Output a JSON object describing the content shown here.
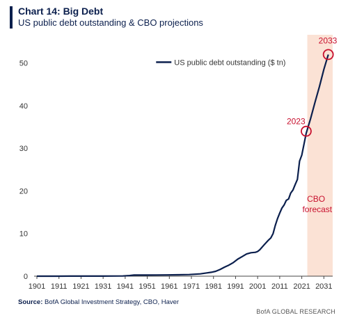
{
  "header": {
    "title": "Chart 14: Big Debt",
    "subtitle": "US public debt outstanding & CBO projections"
  },
  "footer": {
    "source_label": "Source:",
    "source_text": "BofA Global Investment Strategy, CBO, Haver",
    "brand": "BofA GLOBAL RESEARCH"
  },
  "colors": {
    "line": "#0b1f4d",
    "forecast_band": "#fbe2d5",
    "annotation": "#c8102e"
  },
  "chart_data": {
    "type": "line",
    "series": [
      {
        "name": "US public debt outstanding ($ tn)",
        "x": [
          1901,
          1911,
          1916,
          1918,
          1919,
          1921,
          1926,
          1931,
          1935,
          1940,
          1943,
          1945,
          1946,
          1950,
          1955,
          1960,
          1965,
          1970,
          1975,
          1978,
          1980,
          1982,
          1984,
          1986,
          1988,
          1990,
          1992,
          1994,
          1996,
          1998,
          2000,
          2001,
          2002,
          2004,
          2006,
          2007,
          2008,
          2009,
          2010,
          2011,
          2012,
          2013,
          2014,
          2015,
          2016,
          2017,
          2018,
          2019,
          2020,
          2021,
          2022,
          2023,
          2025,
          2027,
          2029,
          2031,
          2033
        ],
        "values": [
          0.0,
          0.0,
          0.01,
          0.01,
          0.03,
          0.02,
          0.02,
          0.02,
          0.03,
          0.05,
          0.14,
          0.26,
          0.27,
          0.26,
          0.27,
          0.29,
          0.32,
          0.38,
          0.54,
          0.77,
          0.91,
          1.14,
          1.57,
          2.12,
          2.6,
          3.2,
          4.0,
          4.6,
          5.2,
          5.5,
          5.6,
          5.8,
          6.2,
          7.4,
          8.5,
          9.0,
          10.0,
          11.9,
          13.5,
          14.8,
          16.0,
          16.7,
          17.8,
          18.1,
          19.5,
          20.2,
          21.5,
          22.7,
          27.0,
          28.4,
          31.0,
          33.5,
          37.0,
          40.8,
          44.5,
          48.5,
          52.0
        ]
      }
    ],
    "xticks": [
      1901,
      1911,
      1921,
      1931,
      1941,
      1951,
      1961,
      1971,
      1981,
      1991,
      2001,
      2011,
      2021,
      2031
    ],
    "yticks": [
      0,
      10,
      20,
      30,
      40,
      50
    ],
    "xlim": [
      1901,
      2035
    ],
    "ylim": [
      0,
      55
    ],
    "legend": "top-center",
    "grid": false,
    "forecast_start": 2023,
    "annotations": [
      {
        "label": "2023",
        "x": 2023,
        "y": 34
      },
      {
        "label": "2033",
        "x": 2033,
        "y": 52
      },
      {
        "label": "CBO forecast",
        "lines": [
          "CBO",
          "forecast"
        ]
      }
    ]
  }
}
